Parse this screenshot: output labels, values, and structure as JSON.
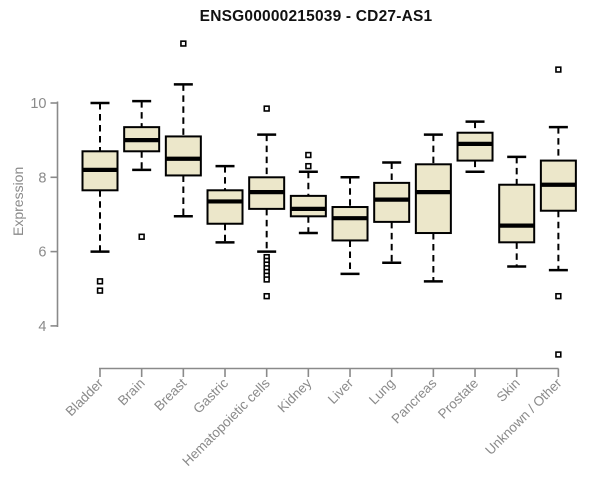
{
  "page": {
    "title": "ENSG00000215039 - CD27-AS1"
  },
  "chart_data": {
    "type": "boxplot",
    "title": "ENSG00000215039 - CD27-AS1",
    "xlabel": "",
    "ylabel": "Expression",
    "ylim": [
      3.0,
      11.8
    ],
    "yticks": [
      4,
      6,
      8,
      10
    ],
    "grid": false,
    "legend": false,
    "categories": [
      "Bladder",
      "Brain",
      "Breast",
      "Gastric",
      "Hematopoietic cells",
      "Kidney",
      "Liver",
      "Lung",
      "Pancreas",
      "Prostate",
      "Skin",
      "Unknown / Other"
    ],
    "boxes": [
      {
        "name": "Bladder",
        "whisker_low": 6.0,
        "q1": 7.65,
        "median": 8.2,
        "q3": 8.7,
        "whisker_high": 10.0,
        "outliers": [
          5.2,
          4.95
        ]
      },
      {
        "name": "Brain",
        "whisker_low": 8.2,
        "q1": 8.7,
        "median": 9.0,
        "q3": 9.35,
        "whisker_high": 10.05,
        "outliers": [
          6.4
        ]
      },
      {
        "name": "Breast",
        "whisker_low": 6.95,
        "q1": 8.05,
        "median": 8.5,
        "q3": 9.1,
        "whisker_high": 10.5,
        "outliers": [
          11.6
        ]
      },
      {
        "name": "Gastric",
        "whisker_low": 6.25,
        "q1": 6.75,
        "median": 7.35,
        "q3": 7.65,
        "whisker_high": 8.3,
        "outliers": []
      },
      {
        "name": "Hematopoietic cells",
        "whisker_low": 6.0,
        "q1": 7.15,
        "median": 7.6,
        "q3": 8.0,
        "whisker_high": 9.15,
        "outliers": [
          9.85,
          5.85,
          5.75,
          5.65,
          5.55,
          5.45,
          5.35,
          5.25,
          4.8
        ]
      },
      {
        "name": "Kidney",
        "whisker_low": 6.5,
        "q1": 6.95,
        "median": 7.15,
        "q3": 7.5,
        "whisker_high": 8.15,
        "outliers": [
          8.6,
          8.3
        ]
      },
      {
        "name": "Liver",
        "whisker_low": 5.4,
        "q1": 6.3,
        "median": 6.9,
        "q3": 7.2,
        "whisker_high": 8.0,
        "outliers": []
      },
      {
        "name": "Lung",
        "whisker_low": 5.7,
        "q1": 6.8,
        "median": 7.4,
        "q3": 7.85,
        "whisker_high": 8.4,
        "outliers": []
      },
      {
        "name": "Pancreas",
        "whisker_low": 5.2,
        "q1": 6.5,
        "median": 7.6,
        "q3": 8.35,
        "whisker_high": 9.15,
        "outliers": []
      },
      {
        "name": "Prostate",
        "whisker_low": 8.15,
        "q1": 8.45,
        "median": 8.9,
        "q3": 9.2,
        "whisker_high": 9.5,
        "outliers": []
      },
      {
        "name": "Skin",
        "whisker_low": 5.6,
        "q1": 6.25,
        "median": 6.7,
        "q3": 7.8,
        "whisker_high": 8.55,
        "outliers": []
      },
      {
        "name": "Unknown / Other",
        "whisker_low": 5.5,
        "q1": 7.1,
        "median": 7.8,
        "q3": 8.45,
        "whisker_high": 9.35,
        "outliers": [
          10.9,
          4.8,
          3.23
        ]
      }
    ],
    "colors": {
      "box_fill": "#ece7ca",
      "box_stroke": "#000000",
      "median": "#000000",
      "whisker": "#000000",
      "outlier_fill": "#ffffff",
      "axis": "#8a8a8a",
      "tick_label": "#8a8a8a",
      "title": "#111111",
      "background": "#ffffff"
    }
  }
}
